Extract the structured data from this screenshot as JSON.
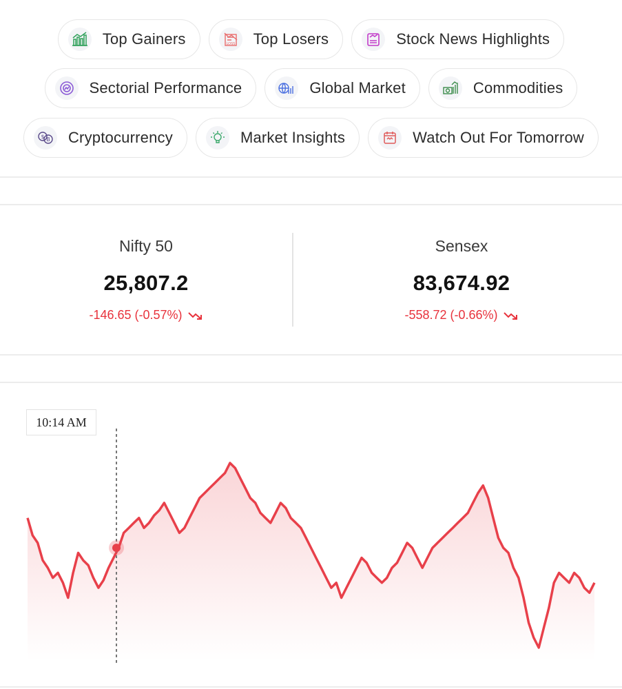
{
  "chips": [
    [
      {
        "label": "Top Gainers",
        "icon": "top-gainers-icon",
        "color": "#2fa05a"
      },
      {
        "label": "Top Losers",
        "icon": "top-losers-icon",
        "color": "#e86b6b"
      },
      {
        "label": "Stock News Highlights",
        "icon": "news-icon",
        "color": "#c23ac9"
      }
    ],
    [
      {
        "label": "Sectorial Performance",
        "icon": "sector-icon",
        "color": "#8b5ad6"
      },
      {
        "label": "Global Market",
        "icon": "global-market-icon",
        "color": "#4a6fe0"
      },
      {
        "label": "Commodities",
        "icon": "commodities-icon",
        "color": "#3a8c4a"
      }
    ],
    [
      {
        "label": "Cryptocurrency",
        "icon": "crypto-icon",
        "color": "#5a4a8a"
      },
      {
        "label": "Market Insights",
        "icon": "insights-icon",
        "color": "#3aa86a"
      },
      {
        "label": "Watch Out For Tomorrow",
        "icon": "calendar-icon",
        "color": "#e05a5a"
      }
    ]
  ],
  "indices": [
    {
      "name": "Nifty 50",
      "value": "25,807.2",
      "change": "-146.65 (-0.57%)"
    },
    {
      "name": "Sensex",
      "value": "83,674.92",
      "change": "-558.72 (-0.66%)"
    }
  ],
  "colors": {
    "down": "#e8323c",
    "accent_line": "#e8404a"
  },
  "chart_data": {
    "type": "area",
    "series": [
      {
        "values": [
          72,
          65,
          62,
          55,
          52,
          48,
          50,
          46,
          40,
          50,
          58,
          55,
          53,
          48,
          44,
          47,
          52,
          56,
          60,
          66,
          68,
          70,
          72,
          68,
          70,
          73,
          75,
          78,
          74,
          70,
          66,
          68,
          72,
          76,
          80,
          82,
          84,
          86,
          88,
          90,
          94,
          92,
          88,
          84,
          80,
          78,
          74,
          72,
          70,
          74,
          78,
          76,
          72,
          70,
          68,
          64,
          60,
          56,
          52,
          48,
          44,
          46,
          40,
          44,
          48,
          52,
          56,
          54,
          50,
          48,
          46,
          48,
          52,
          54,
          58,
          62,
          60,
          56,
          52,
          56,
          60,
          62,
          64,
          66,
          68,
          70,
          72,
          74,
          78,
          82,
          85,
          80,
          72,
          64,
          60,
          58,
          52,
          48,
          40,
          30,
          24,
          20,
          28,
          36,
          46,
          50,
          48,
          46,
          50,
          48,
          44,
          42,
          46
        ]
      }
    ],
    "tooltip_time": "10:14 AM"
  }
}
